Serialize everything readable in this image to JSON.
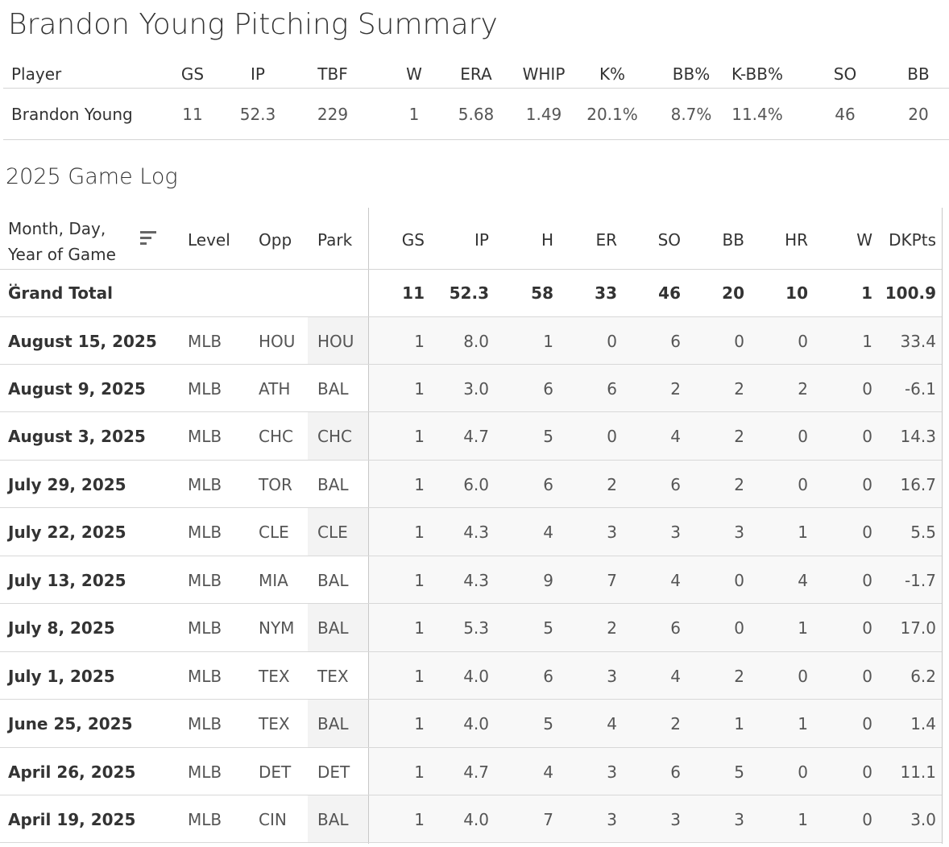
{
  "summary": {
    "title": "Brandon Young Pitching Summary",
    "columns": [
      "Player",
      "GS",
      "IP",
      "TBF",
      "W",
      "ERA",
      "WHIP",
      "K%",
      "BB%",
      "K-BB%",
      "SO",
      "BB"
    ],
    "rows": [
      [
        "Brandon Young",
        "11",
        "52.3",
        "229",
        "1",
        "5.68",
        "1.49",
        "20.1%",
        "8.7%",
        "11.4%",
        "46",
        "20"
      ]
    ]
  },
  "game_log": {
    "title": "2025 Game Log",
    "columns": [
      "Month, Day, Year of Game ..",
      "Level",
      "Opp",
      "Park",
      "GS",
      "IP",
      "H",
      "ER",
      "SO",
      "BB",
      "HR",
      "W",
      "DKPts"
    ],
    "grand_total": [
      "Grand Total",
      "",
      "",
      "",
      "11",
      "52.3",
      "58",
      "33",
      "46",
      "20",
      "10",
      "1",
      "100.9"
    ],
    "rows": [
      [
        "August 15, 2025",
        "MLB",
        "HOU",
        "HOU",
        "1",
        "8.0",
        "1",
        "0",
        "6",
        "0",
        "0",
        "1",
        "33.4"
      ],
      [
        "August 9, 2025",
        "MLB",
        "ATH",
        "BAL",
        "1",
        "3.0",
        "6",
        "6",
        "2",
        "2",
        "2",
        "0",
        "-6.1"
      ],
      [
        "August 3, 2025",
        "MLB",
        "CHC",
        "CHC",
        "1",
        "4.7",
        "5",
        "0",
        "4",
        "2",
        "0",
        "0",
        "14.3"
      ],
      [
        "July 29, 2025",
        "MLB",
        "TOR",
        "BAL",
        "1",
        "6.0",
        "6",
        "2",
        "6",
        "2",
        "0",
        "0",
        "16.7"
      ],
      [
        "July 22, 2025",
        "MLB",
        "CLE",
        "CLE",
        "1",
        "4.3",
        "4",
        "3",
        "3",
        "3",
        "1",
        "0",
        "5.5"
      ],
      [
        "July 13, 2025",
        "MLB",
        "MIA",
        "BAL",
        "1",
        "4.3",
        "9",
        "7",
        "4",
        "0",
        "4",
        "0",
        "-1.7"
      ],
      [
        "July 8, 2025",
        "MLB",
        "NYM",
        "BAL",
        "1",
        "5.3",
        "5",
        "2",
        "6",
        "0",
        "1",
        "0",
        "17.0"
      ],
      [
        "July 1, 2025",
        "MLB",
        "TEX",
        "TEX",
        "1",
        "4.0",
        "6",
        "3",
        "4",
        "2",
        "0",
        "0",
        "6.2"
      ],
      [
        "June 25, 2025",
        "MLB",
        "TEX",
        "BAL",
        "1",
        "4.0",
        "5",
        "4",
        "2",
        "1",
        "1",
        "0",
        "1.4"
      ],
      [
        "April 26, 2025",
        "MLB",
        "DET",
        "DET",
        "1",
        "4.7",
        "4",
        "3",
        "6",
        "5",
        "0",
        "0",
        "11.1"
      ],
      [
        "April 19, 2025",
        "MLB",
        "CIN",
        "BAL",
        "1",
        "4.0",
        "7",
        "3",
        "3",
        "3",
        "1",
        "0",
        "3.0"
      ]
    ]
  }
}
